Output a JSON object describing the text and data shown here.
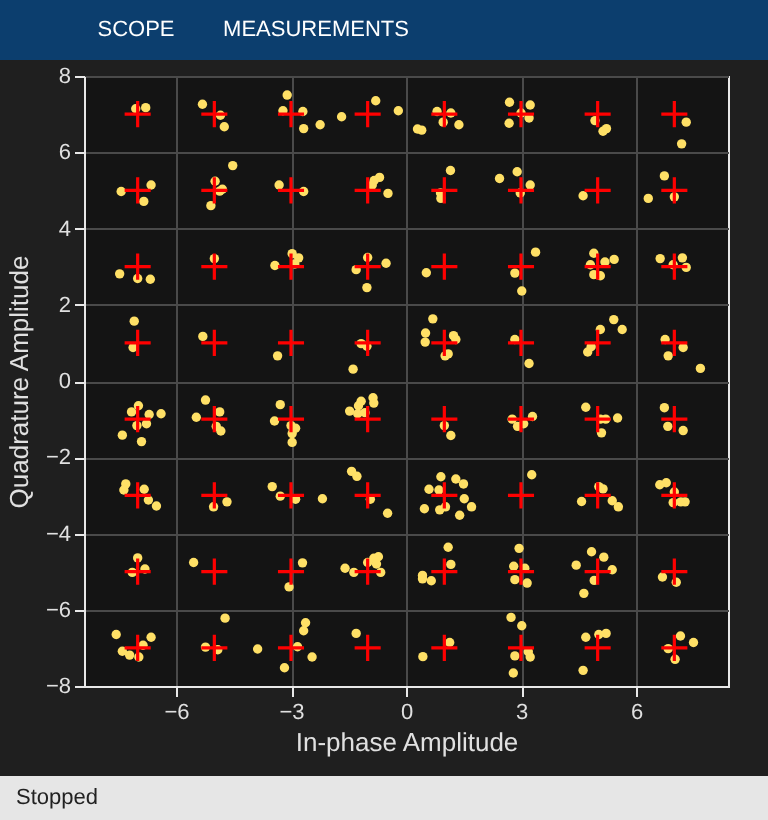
{
  "chart_data": {
    "type": "scatter",
    "xlabel": "In-phase Amplitude",
    "ylabel": "Quadrature Amplitude",
    "xlim": [
      -8.4,
      8.4
    ],
    "xticks": [
      -6,
      -3,
      0,
      3,
      6
    ],
    "ylim": [
      -8,
      8
    ],
    "yticks": [
      -8,
      -6,
      -4,
      -2,
      0,
      2,
      4,
      6,
      8
    ],
    "grid": true,
    "annotations": [
      "SCOPE",
      "MEASUREMENTS",
      "Stopped"
    ],
    "series": [
      {
        "marker": "circle",
        "color": "#ffe066",
        "x": [
          -7.05,
          -6.79,
          -5.31,
          -4.84,
          -4.74,
          -3.1,
          -3.21,
          -2.69,
          -2.67,
          -2.24,
          -1.68,
          -0.79,
          -0.2,
          0.3,
          -7.43,
          -6.65,
          -6.84,
          -4.52,
          -4.98,
          -4.79,
          -4.86,
          -5.09,
          -3.31,
          -2.67,
          -0.69,
          -0.83,
          -0.88,
          -0.47,
          -7.47,
          -7.0,
          -6.67,
          -5.0,
          -3.42,
          -2.97,
          -2.8,
          -2.9,
          -1.0,
          -1.3,
          -0.52,
          -1.02,
          -7.09,
          -7.12,
          -5.3,
          -3.35,
          -1.17,
          -1.02,
          -1.38,
          0.81,
          1.17,
          0.97,
          1.38,
          0.41,
          2.7,
          3.24,
          2.69,
          3.21,
          3.0,
          4.93,
          5.14,
          5.23,
          7.31,
          7.19,
          1.16,
          0.9,
          0.91,
          2.44,
          2.9,
          3.24,
          2.98,
          4.62,
          6.74,
          6.32,
          7.0,
          0.53,
          3.38,
          2.84,
          3.02,
          4.9,
          5.19,
          5.43,
          4.81,
          4.9,
          5.07,
          6.63,
          7.21,
          7.31,
          6.97,
          0.7,
          0.51,
          0.5,
          1.24,
          1.3,
          1.1,
          1.02,
          2.84,
          3.21,
          5.07,
          5.42,
          5.64,
          4.74,
          4.83,
          6.76,
          7.23,
          6.84,
          7.68,
          -7.16,
          -6.98,
          -6.7,
          -6.39,
          -7.02,
          -6.77,
          -7.4,
          -6.9,
          -5.23,
          -5.47,
          -4.86,
          -4.95,
          -4.83,
          -3.28,
          -3.43,
          -3.0,
          -2.88,
          -2.97,
          -2.97,
          -0.86,
          -0.84,
          -1.17,
          -1.24,
          -1.47,
          -1.26,
          -1.07,
          -7.31,
          -7.36,
          -6.83,
          -6.72,
          -6.51,
          -4.67,
          -5.02,
          -3.49,
          -3.28,
          -2.88,
          -2.18,
          -1.42,
          -1.28,
          -0.93,
          -0.48,
          -7.0,
          -6.81,
          -7.14,
          -5.54,
          -2.7,
          -3.05,
          -0.84,
          -0.72,
          -1.0,
          -1.59,
          -1.36,
          -0.66,
          -0.77,
          -7.56,
          -7.4,
          -7.21,
          -6.97,
          -6.86,
          -6.65,
          -4.72,
          -5.23,
          -4.91,
          -3.87,
          -2.62,
          -2.67,
          -2.83,
          -2.45,
          -3.17,
          -1.3,
          1.0,
          1.17,
          2.77,
          2.91,
          3.07,
          3.3,
          4.69,
          5.07,
          5.21,
          5.52,
          5.1,
          6.74,
          6.83,
          7.23,
          0.91,
          1.3,
          1.5,
          0.6,
          0.86,
          1.52,
          1.71,
          0.48,
          0.88,
          1.03,
          1.4,
          3.28,
          5.03,
          5.14,
          4.58,
          5.38,
          5.54,
          6.62,
          6.79,
          7.0,
          6.97,
          7.17,
          7.28,
          1.1,
          1.17,
          0.43,
          0.66,
          0.43,
          2.95,
          2.81,
          3.1,
          2.84,
          3.16,
          4.84,
          5.16,
          4.44,
          5.38,
          4.91,
          4.64,
          6.69,
          7.05,
          1.14,
          0.44,
          2.74,
          3.02,
          3.19,
          2.84,
          3.24,
          2.8,
          4.69,
          5.03,
          5.22,
          4.62,
          7.16,
          7.5,
          6.84,
          7.02
        ],
        "values": [
          7.14,
          7.17,
          7.26,
          6.97,
          6.67,
          7.5,
          7.09,
          7.07,
          6.62,
          6.72,
          6.93,
          7.35,
          7.09,
          6.61,
          4.97,
          5.14,
          4.71,
          5.65,
          5.24,
          5.03,
          4.98,
          4.6,
          5.14,
          4.97,
          5.34,
          5.26,
          5.14,
          4.92,
          2.81,
          2.69,
          2.67,
          3.21,
          3.03,
          3.34,
          3.23,
          3.07,
          3.24,
          2.92,
          3.09,
          2.45,
          1.57,
          0.88,
          1.17,
          0.66,
          0.98,
          0.91,
          0.31,
          7.07,
          7.03,
          6.79,
          6.72,
          6.58,
          7.31,
          7.24,
          6.76,
          6.9,
          7.03,
          6.83,
          6.55,
          6.62,
          6.79,
          6.22,
          5.52,
          4.93,
          4.79,
          5.31,
          5.49,
          5.14,
          4.93,
          4.86,
          5.38,
          4.79,
          4.83,
          2.84,
          3.38,
          2.83,
          2.36,
          3.35,
          3.12,
          3.19,
          3.05,
          2.79,
          2.76,
          3.21,
          3.23,
          2.98,
          3.05,
          1.63,
          1.26,
          1.02,
          1.19,
          1.09,
          0.71,
          0.66,
          1.09,
          0.46,
          1.35,
          1.61,
          1.35,
          0.76,
          0.9,
          1.09,
          0.88,
          0.66,
          0.33,
          -0.81,
          -0.65,
          -0.88,
          -0.86,
          -1.17,
          -1.12,
          -1.42,
          -1.59,
          -0.5,
          -0.95,
          -0.81,
          -1.19,
          -1.31,
          -0.62,
          -1.05,
          -1.17,
          -1.24,
          -1.38,
          -1.61,
          -0.44,
          -0.58,
          -0.53,
          -0.65,
          -0.79,
          -0.86,
          -0.83,
          -2.7,
          -2.86,
          -2.84,
          -3.12,
          -3.28,
          -3.17,
          -3.3,
          -2.77,
          -3.02,
          -3.1,
          -3.09,
          -2.37,
          -2.5,
          -3.1,
          -3.47,
          -4.64,
          -4.93,
          -5.02,
          -4.76,
          -4.77,
          -5.4,
          -4.65,
          -4.61,
          -4.76,
          -4.91,
          -5.02,
          -5.02,
          -4.8,
          -6.65,
          -7.09,
          -7.19,
          -7.24,
          -6.93,
          -6.72,
          -6.22,
          -6.98,
          -7.05,
          -7.03,
          -6.34,
          -6.55,
          -6.97,
          -7.24,
          -7.52,
          -6.62,
          -1.17,
          -1.43,
          -1.0,
          -1.19,
          -1.12,
          -0.93,
          -0.69,
          -1.0,
          -1.0,
          -0.97,
          -1.36,
          -0.7,
          -1.19,
          -1.3,
          -2.51,
          -2.57,
          -2.7,
          -2.84,
          -2.86,
          -3.09,
          -3.3,
          -3.35,
          -3.38,
          -3.3,
          -3.52,
          -2.46,
          -2.77,
          -2.83,
          -3.16,
          -3.14,
          -3.3,
          -2.72,
          -2.67,
          -2.91,
          -3.19,
          -3.17,
          -3.17,
          -4.36,
          -4.81,
          -5.1,
          -5.24,
          -5.19,
          -4.39,
          -4.86,
          -4.91,
          -5.21,
          -5.3,
          -4.48,
          -4.62,
          -4.83,
          -4.95,
          -5.23,
          -5.57,
          -5.14,
          -5.28,
          -6.86,
          -7.23,
          -6.2,
          -6.42,
          -7.1,
          -7.21,
          -7.24,
          -7.66,
          -6.72,
          -6.65,
          -6.62,
          -7.59,
          -6.69,
          -6.86,
          -7.02,
          -7.3
        ]
      },
      {
        "marker": "cross",
        "color": "#ff0000",
        "x": [
          -7,
          -5,
          -3,
          -1,
          1,
          3,
          5,
          7,
          -7,
          -5,
          -3,
          -1,
          1,
          3,
          5,
          7,
          -7,
          -5,
          -3,
          -1,
          1,
          3,
          5,
          7,
          -7,
          -5,
          -3,
          -1,
          1,
          3,
          5,
          7,
          -7,
          -5,
          -3,
          -1,
          1,
          3,
          5,
          7,
          -7,
          -5,
          -3,
          -1,
          1,
          3,
          5,
          7,
          -7,
          -5,
          -3,
          -1,
          1,
          3,
          5,
          7,
          -7,
          -5,
          -3,
          -1,
          1,
          3,
          5,
          7
        ],
        "values": [
          7,
          7,
          7,
          7,
          7,
          7,
          7,
          7,
          5,
          5,
          5,
          5,
          5,
          5,
          5,
          5,
          3,
          3,
          3,
          3,
          3,
          3,
          3,
          3,
          1,
          1,
          1,
          1,
          1,
          1,
          1,
          1,
          -1,
          -1,
          -1,
          -1,
          -1,
          -1,
          -1,
          -1,
          -3,
          -3,
          -3,
          -3,
          -3,
          -3,
          -3,
          -3,
          -5,
          -5,
          -5,
          -5,
          -5,
          -5,
          -5,
          -5,
          -7,
          -7,
          -7,
          -7,
          -7,
          -7,
          -7,
          -7
        ]
      }
    ]
  }
}
